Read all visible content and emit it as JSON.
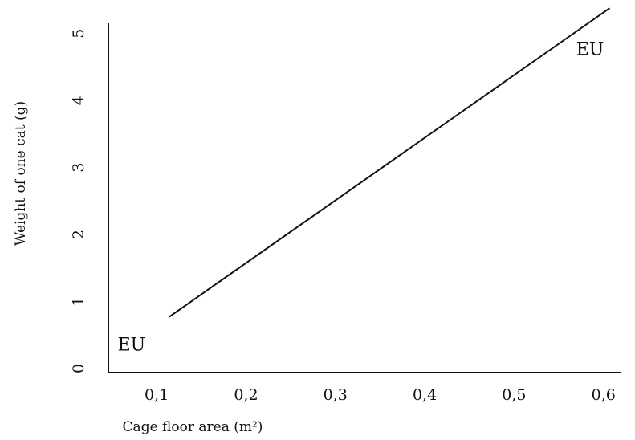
{
  "chart_data": {
    "type": "line",
    "title": "",
    "xlabel": "Cage floor area (m²)",
    "ylabel": "Weight of one cat (g)",
    "x_ticks": [
      "0,1",
      "0,2",
      "0,3",
      "0,4",
      "0,5",
      "0,6"
    ],
    "x_tick_values": [
      0.1,
      0.2,
      0.3,
      0.4,
      0.5,
      0.6
    ],
    "y_ticks": [
      "0",
      "1",
      "2",
      "3",
      "4",
      "5"
    ],
    "y_tick_values": [
      0,
      1,
      2,
      3,
      4,
      5
    ],
    "xlim": [
      0.046,
      0.62
    ],
    "ylim": [
      -0.06,
      5.5
    ],
    "grid": false,
    "series": [
      {
        "x": [
          0.114,
          0.607
        ],
        "y": [
          0.77,
          5.38
        ]
      }
    ],
    "annotations": [
      {
        "text": "EU",
        "x": 0.072,
        "y": 0.35
      },
      {
        "text": "EU",
        "x": 0.585,
        "y": 4.76
      }
    ]
  }
}
